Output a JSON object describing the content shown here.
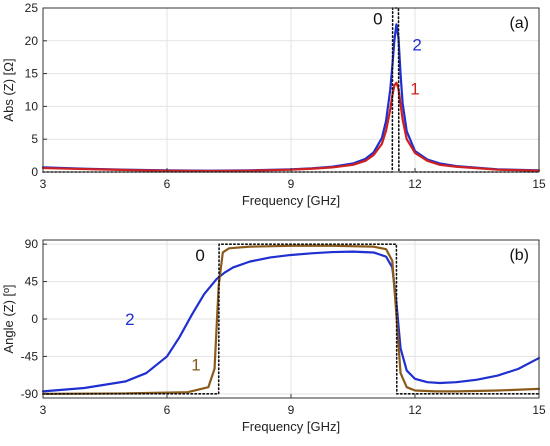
{
  "chart_data": [
    {
      "type": "line",
      "panel_label": "(a)",
      "xlabel": "Frequency [GHz]",
      "ylabel": "Abs (Z) [Ω]",
      "xlim": [
        3,
        15
      ],
      "ylim": [
        0,
        25
      ],
      "xticks": [
        3,
        6,
        9,
        12,
        15
      ],
      "yticks": [
        0,
        5,
        10,
        15,
        20,
        25
      ],
      "grid": true,
      "curve_labels": [
        {
          "text": "0",
          "x": 11.1,
          "y": 22.5,
          "color": "#111111"
        },
        {
          "text": "2",
          "x": 12.05,
          "y": 18.5,
          "color": "#1f2fd0"
        },
        {
          "text": "1",
          "x": 12.0,
          "y": 11.8,
          "color": "#d01f1f"
        }
      ],
      "series": [
        {
          "color": "#1f2fd0",
          "style": "solid",
          "x": [
            3,
            4,
            5,
            6,
            7,
            8,
            9,
            9.5,
            10,
            10.5,
            10.8,
            11.0,
            11.2,
            11.3,
            11.4,
            11.45,
            11.5,
            11.55,
            11.6,
            11.65,
            11.7,
            11.8,
            12.0,
            12.3,
            12.6,
            13,
            14,
            15
          ],
          "y": [
            0.7,
            0.5,
            0.35,
            0.25,
            0.2,
            0.25,
            0.4,
            0.55,
            0.8,
            1.3,
            2.0,
            3.0,
            5.2,
            7.8,
            12.5,
            16.0,
            20.0,
            22.5,
            20.5,
            15.0,
            10.5,
            6.2,
            3.2,
            1.9,
            1.3,
            0.9,
            0.4,
            0.25
          ]
        },
        {
          "color": "#d01f1f",
          "style": "solid",
          "x": [
            3,
            4,
            5,
            6,
            7,
            8,
            9,
            9.5,
            10,
            10.5,
            10.8,
            11.0,
            11.2,
            11.3,
            11.4,
            11.45,
            11.5,
            11.55,
            11.6,
            11.65,
            11.7,
            11.8,
            12.0,
            12.3,
            12.6,
            13,
            14,
            15
          ],
          "y": [
            0.6,
            0.45,
            0.3,
            0.2,
            0.15,
            0.2,
            0.35,
            0.5,
            0.7,
            1.1,
            1.7,
            2.6,
            4.3,
            6.3,
            9.5,
            11.6,
            13.2,
            13.6,
            12.7,
            10.4,
            8.0,
            5.0,
            2.9,
            1.7,
            1.1,
            0.8,
            0.35,
            0.2
          ]
        },
        {
          "color": "#111111",
          "style": "dotted",
          "x": [
            3,
            9,
            11.45,
            11.46,
            11.6,
            11.61,
            15
          ],
          "y": [
            0,
            0,
            0,
            25,
            25,
            0,
            0
          ]
        }
      ]
    },
    {
      "type": "line",
      "panel_label": "(b)",
      "xlabel": "Frequency [GHz]",
      "ylabel": "Angle (Z) [º]",
      "xlim": [
        3,
        15
      ],
      "ylim": [
        -95,
        95
      ],
      "xticks": [
        3,
        6,
        9,
        12,
        15
      ],
      "yticks": [
        -90,
        -45,
        0,
        45,
        90
      ],
      "grid": true,
      "curve_labels": [
        {
          "text": "0",
          "x": 6.8,
          "y": 70,
          "color": "#111111"
        },
        {
          "text": "2",
          "x": 5.1,
          "y": -7,
          "color": "#1f2fd0"
        },
        {
          "text": "1",
          "x": 6.7,
          "y": -62,
          "color": "#8a5a1a"
        }
      ],
      "series": [
        {
          "color": "#1f2fd0",
          "style": "solid",
          "x": [
            3,
            4,
            5,
            5.5,
            6,
            6.3,
            6.6,
            6.9,
            7.2,
            7.4,
            7.6,
            8,
            8.5,
            9,
            9.5,
            10,
            10.5,
            11,
            11.3,
            11.45,
            11.55,
            11.65,
            11.8,
            12,
            12.3,
            12.6,
            13,
            13.5,
            14,
            14.5,
            15
          ],
          "y": [
            -87,
            -83,
            -75,
            -65,
            -45,
            -22,
            5,
            30,
            48,
            56,
            62,
            69,
            74,
            77,
            79,
            80.5,
            81,
            80,
            75,
            62,
            20,
            -35,
            -62,
            -72,
            -76,
            -77,
            -76,
            -73,
            -68,
            -60,
            -47
          ]
        },
        {
          "color": "#8a5a1a",
          "style": "solid",
          "x": [
            3,
            5,
            6.5,
            7.0,
            7.15,
            7.25,
            7.35,
            7.5,
            8,
            9,
            10,
            11,
            11.3,
            11.45,
            11.55,
            11.65,
            11.8,
            12,
            12.5,
            13,
            14,
            15
          ],
          "y": [
            -90,
            -89.5,
            -88,
            -82,
            -60,
            40,
            80,
            85,
            87,
            88,
            88,
            87,
            84,
            70,
            5,
            -65,
            -82,
            -86,
            -87,
            -87,
            -86,
            -84
          ]
        },
        {
          "color": "#111111",
          "style": "dotted",
          "x": [
            3,
            7.25,
            7.26,
            11.55,
            11.56,
            15
          ],
          "y": [
            -90,
            -90,
            90,
            90,
            -90,
            -90
          ]
        }
      ]
    }
  ]
}
